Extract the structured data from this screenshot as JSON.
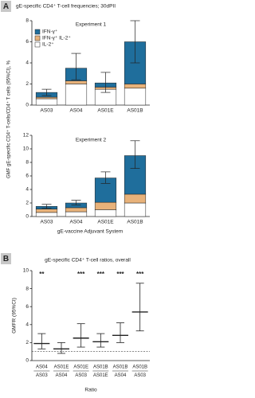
{
  "panels": [
    {
      "label": "A",
      "title": "gE-specific CD4⁺ T-cell frequencies; 30dPII",
      "ylabel": "GMF gE-specific CD4⁺ T-cells/CD4⁺ T cells (95%CI), %",
      "xlabel": "gE-vaccine Adjuvant System"
    },
    {
      "label": "B"
    }
  ],
  "chart_data": [
    {
      "type": "stacked-bar",
      "title": "Experiment 1",
      "categories": [
        "AS03",
        "AS04",
        "AS01E",
        "AS01B"
      ],
      "series": [
        {
          "name": "IFN-γ⁺",
          "color": "#1f6e9c",
          "values": [
            0.45,
            1.2,
            0.4,
            4.0
          ]
        },
        {
          "name": "IFN-γ⁺ IL-2⁺",
          "color": "#e8b27a",
          "values": [
            0.15,
            0.3,
            0.2,
            0.4
          ]
        },
        {
          "name": "IL-2⁺",
          "color": "#ffffff",
          "values": [
            0.6,
            2.0,
            1.5,
            1.6
          ]
        }
      ],
      "ci_lower": [
        0.9,
        2.4,
        1.2,
        4.0
      ],
      "ci_upper": [
        1.5,
        4.9,
        3.1,
        8.0
      ],
      "ylim": [
        0,
        8
      ],
      "yticks": [
        0,
        2,
        4,
        6,
        8
      ],
      "legend": "upper-left"
    },
    {
      "type": "stacked-bar",
      "title": "Experiment 2",
      "categories": [
        "AS03",
        "AS04",
        "AS01E",
        "AS01B"
      ],
      "series": [
        {
          "name": "IFN-γ⁺",
          "color": "#1f6e9c",
          "values": [
            0.4,
            0.7,
            3.6,
            5.7
          ]
        },
        {
          "name": "IFN-γ⁺ IL-2⁺",
          "color": "#e8b27a",
          "values": [
            0.5,
            0.6,
            1.1,
            1.3
          ]
        },
        {
          "name": "IL-2⁺",
          "color": "#ffffff",
          "values": [
            0.6,
            0.7,
            1.0,
            2.0
          ]
        }
      ],
      "ci_lower": [
        1.2,
        1.7,
        4.9,
        7.1
      ],
      "ci_upper": [
        1.8,
        2.4,
        6.6,
        11.2
      ],
      "ylim": [
        0,
        12
      ],
      "yticks": [
        0,
        2,
        4,
        6,
        8,
        10,
        12
      ]
    },
    {
      "type": "interval",
      "title": "gE-specific CD4⁺ T-cell ratios, overall",
      "ylabel": "GMFR (95%CI)",
      "xlabel": "Ratio",
      "numerators": [
        "AS04",
        "AS01E",
        "AS01E",
        "AS01B",
        "AS01B",
        "AS01B"
      ],
      "denominators": [
        "AS03",
        "AS04",
        "AS03",
        "AS01E",
        "AS04",
        "AS03"
      ],
      "values": [
        1.9,
        1.3,
        2.5,
        2.1,
        2.8,
        5.4
      ],
      "ci_lower": [
        1.3,
        0.8,
        1.5,
        1.5,
        2.0,
        3.3
      ],
      "ci_upper": [
        3.0,
        2.0,
        4.1,
        3.0,
        4.2,
        8.6
      ],
      "annotations": [
        "**",
        null,
        "***",
        "***",
        "***",
        "***"
      ],
      "reference_line": 1,
      "ylim": [
        0,
        10
      ],
      "yticks": [
        0,
        2,
        4,
        6,
        8,
        10
      ]
    }
  ]
}
